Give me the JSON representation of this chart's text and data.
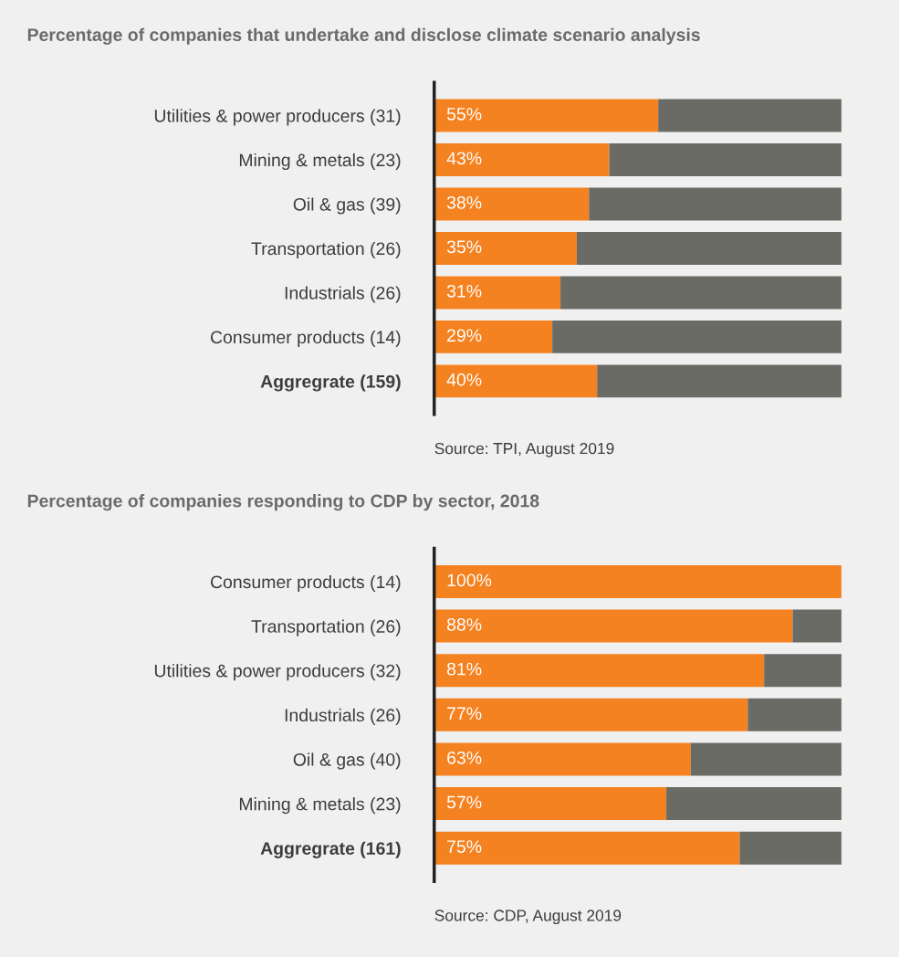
{
  "chart_data": [
    {
      "type": "bar",
      "orientation": "horizontal",
      "stacked": true,
      "title": "Percentage of companies that undertake and disclose climate scenario analysis",
      "categories": [
        "Utilities & power producers (31)",
        "Mining & metals (23)",
        "Oil & gas (39)",
        "Transportation (26)",
        "Industrials (26)",
        "Consumer products (14)",
        "Aggregrate (159)"
      ],
      "series": [
        {
          "color": "#f58220",
          "values": [
            55,
            43,
            38,
            35,
            31,
            29,
            40
          ],
          "value_labels": [
            "55%",
            "43%",
            "38%",
            "35%",
            "31%",
            "29%",
            "40%"
          ]
        },
        {
          "color": "#6b6b66",
          "values": [
            45,
            57,
            62,
            65,
            69,
            71,
            60
          ]
        }
      ],
      "xlim": [
        0,
        100
      ],
      "tick_labels": "y",
      "grid": false,
      "legend": false,
      "annotations": [
        "Source: TPI, August 2019"
      ]
    },
    {
      "type": "bar",
      "orientation": "horizontal",
      "stacked": true,
      "title": "Percentage of companies responding to CDP by sector, 2018",
      "categories": [
        "Consumer products (14)",
        "Transportation (26)",
        "Utilities & power producers (32)",
        "Industrials (26)",
        "Oil & gas (40)",
        "Mining & metals (23)",
        "Aggregrate (161)"
      ],
      "series": [
        {
          "color": "#f58220",
          "values": [
            100,
            88,
            81,
            77,
            63,
            57,
            75
          ],
          "value_labels": [
            "100%",
            "88%",
            "81%",
            "77%",
            "63%",
            "57%",
            "75%"
          ]
        },
        {
          "color": "#6b6b66",
          "values": [
            0,
            12,
            19,
            23,
            37,
            43,
            25
          ]
        }
      ],
      "xlim": [
        0,
        100
      ],
      "tick_labels": "y",
      "grid": false,
      "legend": false,
      "annotations": [
        "Source: CDP, August 2019"
      ]
    }
  ]
}
